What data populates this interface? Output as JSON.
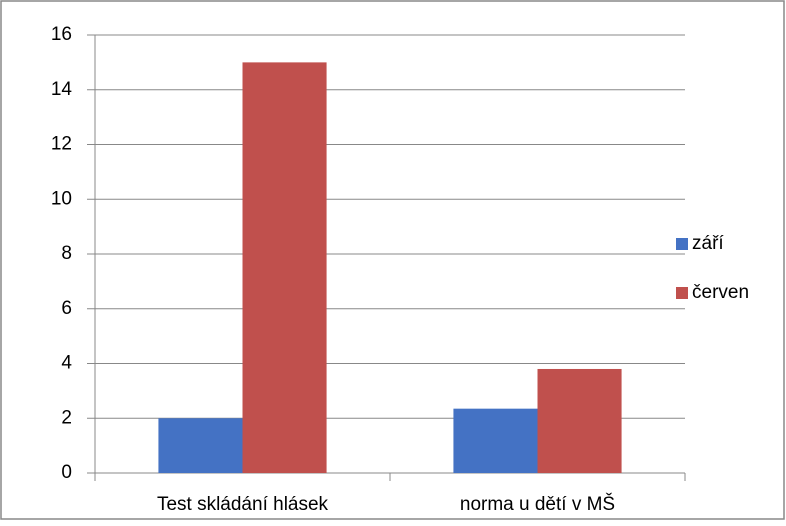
{
  "chart_data": {
    "type": "bar",
    "categories": [
      "Test skládání hlásek",
      "norma u dětí v MŠ"
    ],
    "series": [
      {
        "name": "září",
        "color": "#4472c4",
        "values": [
          2,
          2.35
        ]
      },
      {
        "name": "červen",
        "color": "#c0504d",
        "values": [
          15,
          3.8
        ]
      }
    ],
    "ylim": [
      0,
      16
    ],
    "yticks": [
      0,
      2,
      4,
      6,
      8,
      10,
      12,
      14,
      16
    ],
    "grid": true,
    "legend": "right"
  }
}
